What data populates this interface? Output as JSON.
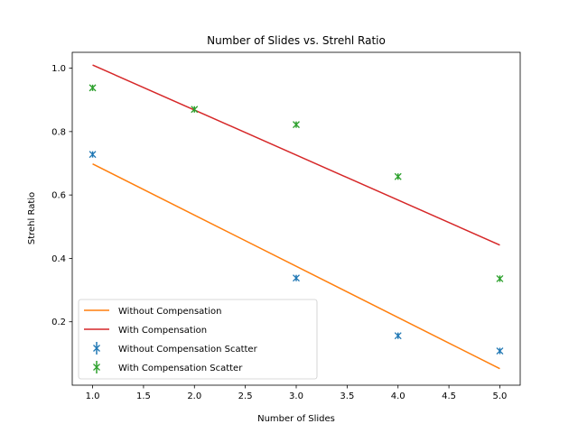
{
  "chart_data": {
    "type": "line",
    "title": "Number of Slides vs. Strehl Ratio",
    "xlabel": "Number of Slides",
    "ylabel": "Strehl Ratio",
    "xlim": [
      0.8,
      5.2
    ],
    "ylim": [
      0.0,
      1.05
    ],
    "xticks": [
      1.0,
      1.5,
      2.0,
      2.5,
      3.0,
      3.5,
      4.0,
      4.5,
      5.0
    ],
    "xtick_labels": [
      "1.0",
      "1.5",
      "2.0",
      "2.5",
      "3.0",
      "3.5",
      "4.0",
      "4.5",
      "5.0"
    ],
    "yticks": [
      0.2,
      0.4,
      0.6,
      0.8,
      1.0
    ],
    "ytick_labels": [
      "0.2",
      "0.4",
      "0.6",
      "0.8",
      "1.0"
    ],
    "grid": false,
    "legend_position": "lower-left",
    "series": [
      {
        "name": "Without Compensation",
        "kind": "line",
        "color": "#ff7f0e",
        "x": [
          1,
          5
        ],
        "y": [
          0.698,
          0.052
        ]
      },
      {
        "name": "With Compensation",
        "kind": "line",
        "color": "#d62728",
        "x": [
          1,
          5
        ],
        "y": [
          1.01,
          0.442
        ]
      },
      {
        "name": "Without Compensation Scatter",
        "kind": "errorbar",
        "color": "#1f77b4",
        "x": [
          1,
          3,
          4,
          5
        ],
        "y": [
          0.728,
          0.338,
          0.156,
          0.108
        ],
        "yerr": [
          0.01,
          0.01,
          0.01,
          0.01
        ]
      },
      {
        "name": "With Compensation Scatter",
        "kind": "errorbar",
        "color": "#2ca02c",
        "x": [
          1,
          2,
          3,
          4,
          5
        ],
        "y": [
          0.938,
          0.87,
          0.822,
          0.658,
          0.336
        ],
        "yerr": [
          0.01,
          0.01,
          0.01,
          0.01,
          0.01
        ]
      }
    ]
  }
}
